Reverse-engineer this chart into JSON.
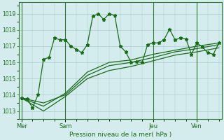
{
  "background_color": "#d4ecee",
  "grid_color": "#aacdd0",
  "line_color": "#1a6b1a",
  "title": "Pression niveau de la mer( hPa )",
  "ylim": [
    1012.5,
    1019.7
  ],
  "yticks": [
    1013,
    1014,
    1015,
    1016,
    1017,
    1018,
    1019
  ],
  "day_labels": [
    "Mer",
    "Sam",
    "Jeu",
    "Ven"
  ],
  "day_positions": [
    0,
    8,
    24,
    32
  ],
  "total_points": 37,
  "xlim": [
    -0.5,
    36.5
  ],
  "series1_x": [
    0,
    1,
    2,
    3,
    4,
    5,
    6,
    7,
    8,
    9,
    10,
    11,
    12,
    13,
    14,
    15,
    16,
    17,
    18,
    19,
    20,
    21,
    22,
    23,
    24,
    25,
    26,
    27,
    28,
    29,
    30,
    31,
    32,
    33,
    34,
    35,
    36
  ],
  "series1": [
    1013.8,
    1013.75,
    1013.2,
    1014.0,
    1016.2,
    1016.3,
    1017.5,
    1017.4,
    1017.4,
    1017.0,
    1016.8,
    1016.6,
    1017.1,
    1018.85,
    1019.0,
    1018.65,
    1019.0,
    1018.9,
    1017.0,
    1016.65,
    1016.0,
    1016.05,
    1016.0,
    1017.1,
    1017.2,
    1017.2,
    1017.4,
    1018.05,
    1017.4,
    1017.5,
    1017.45,
    1016.5,
    1017.2,
    1016.95,
    1016.6,
    1016.5,
    1017.2
  ],
  "series2_x": [
    0,
    4,
    8,
    12,
    16,
    20,
    24,
    28,
    32,
    36
  ],
  "series2": [
    1013.8,
    1013.5,
    1014.0,
    1015.2,
    1015.8,
    1016.0,
    1016.3,
    1016.65,
    1016.85,
    1017.1
  ],
  "series3_x": [
    0,
    4,
    8,
    12,
    16,
    20,
    24,
    28,
    32,
    36
  ],
  "series3": [
    1013.8,
    1013.3,
    1014.1,
    1015.4,
    1016.0,
    1016.15,
    1016.5,
    1016.75,
    1017.0,
    1017.2
  ],
  "series4_x": [
    0,
    4,
    8,
    12,
    16,
    20,
    24,
    28,
    32,
    36
  ],
  "series4": [
    1013.8,
    1013.0,
    1013.9,
    1015.0,
    1015.5,
    1015.75,
    1016.1,
    1016.45,
    1016.65,
    1016.9
  ]
}
